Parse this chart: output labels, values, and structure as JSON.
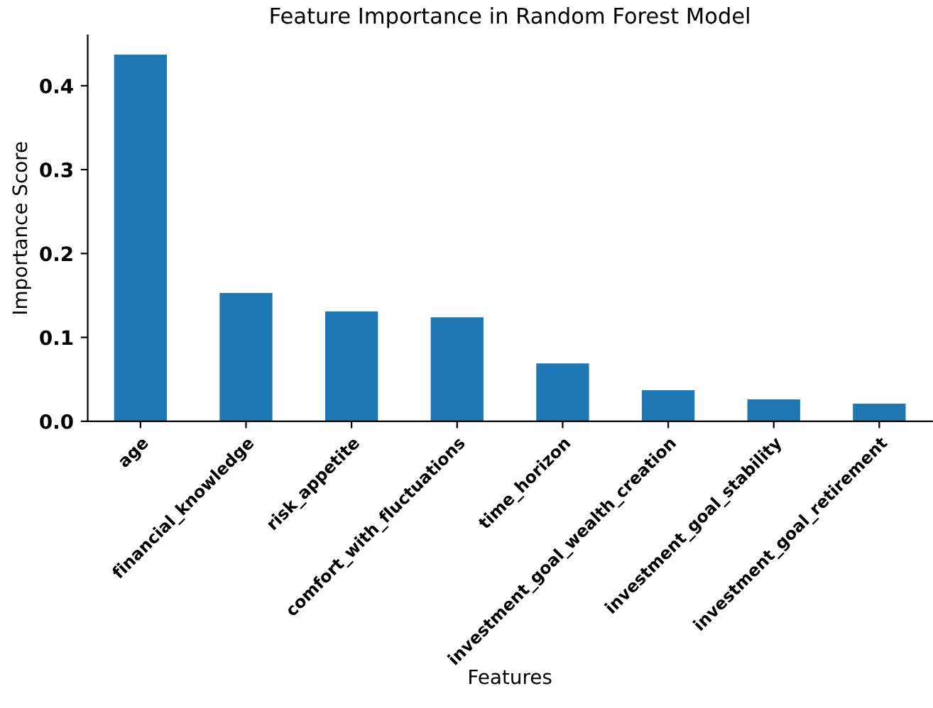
{
  "chart_data": {
    "type": "bar",
    "title": "Feature Importance in Random Forest Model",
    "xlabel": "Features",
    "ylabel": "Importance Score",
    "categories": [
      "age",
      "financial_knowledge",
      "risk_appetite",
      "comfort_with_fluctuations",
      "time_horizon",
      "investment_goal_wealth_creation",
      "investment_goal_stability",
      "investment_goal_retirement"
    ],
    "values": [
      0.437,
      0.153,
      0.131,
      0.124,
      0.069,
      0.037,
      0.026,
      0.021
    ],
    "color": "#1f77b4",
    "ylim": [
      0,
      0.46
    ],
    "yticks": [
      {
        "value": 0,
        "label": "0.0"
      },
      0.1,
      0.2,
      0.3,
      0.4
    ]
  }
}
